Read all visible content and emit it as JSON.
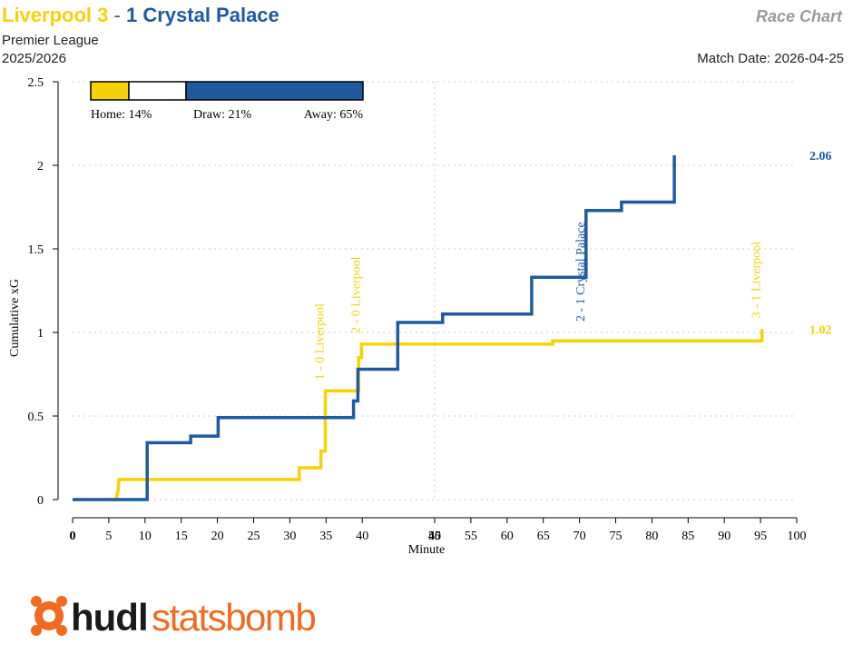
{
  "header": {
    "home_team": "Liverpool",
    "home_score": "3",
    "separator": "-",
    "away_score": "1",
    "away_team": "Crystal Palace",
    "competition": "Premier League",
    "season": "2025/2026",
    "chart_label": "Race Chart",
    "match_date": "Match Date: 2026-04-25"
  },
  "probability_bar": {
    "home_label": "Home: 14%",
    "draw_label": "Draw: 21%",
    "away_label": "Away: 65%",
    "home": 0.14,
    "draw": 0.21,
    "away": 0.65
  },
  "logo": {
    "text_dark": "hudl",
    "text_orange": "statsbomb",
    "icon": "statsbomb-logo-icon"
  },
  "colors": {
    "home": "#f6d20a",
    "away": "#1f5aa0",
    "logo_orange": "#f26a21",
    "logo_dark": "#1a1a1a"
  },
  "chart_data": {
    "type": "line",
    "step": true,
    "xlabel": "Minute",
    "ylabel": "Cumulative xG",
    "xlim": [
      0,
      100
    ],
    "ylim": [
      0,
      2.5
    ],
    "xticks": [
      "0",
      "5",
      "10",
      "15",
      "20",
      "25",
      "30",
      "35",
      "40",
      "45",
      "45",
      "50",
      "55",
      "60",
      "65",
      "70",
      "75",
      "80",
      "85",
      "90",
      "95",
      "100"
    ],
    "xtick_values": [
      0,
      5,
      10,
      15,
      20,
      25,
      30,
      35,
      40,
      45,
      45,
      50,
      55,
      60,
      65,
      70,
      75,
      80,
      85,
      90,
      95,
      100
    ],
    "halftime_tick": "45",
    "halftime_minute": 50,
    "yticks": [
      "0",
      "0.5",
      "1",
      "1.5",
      "2",
      "2.5"
    ],
    "ytick_values": [
      0,
      0.5,
      1,
      1.5,
      2,
      2.5
    ],
    "grid": true,
    "series": [
      {
        "name": "Liverpool",
        "final_label": "1.02",
        "points": [
          [
            0,
            0
          ],
          [
            6,
            0
          ],
          [
            6.3,
            0.06
          ],
          [
            6.4,
            0.12
          ],
          [
            31.3,
            0.12
          ],
          [
            31.3,
            0.19
          ],
          [
            34.3,
            0.19
          ],
          [
            34.3,
            0.29
          ],
          [
            34.9,
            0.29
          ],
          [
            34.9,
            0.65
          ],
          [
            39.5,
            0.65
          ],
          [
            39.5,
            0.85
          ],
          [
            39.9,
            0.85
          ],
          [
            39.9,
            0.93
          ],
          [
            66.3,
            0.93
          ],
          [
            66.3,
            0.95
          ],
          [
            95.2,
            0.95
          ],
          [
            95.2,
            1.02
          ]
        ]
      },
      {
        "name": "Crystal Palace",
        "final_label": "2.06",
        "points": [
          [
            0,
            0
          ],
          [
            10.3,
            0
          ],
          [
            10.3,
            0.34
          ],
          [
            16.3,
            0.34
          ],
          [
            16.3,
            0.38
          ],
          [
            20.1,
            0.38
          ],
          [
            20.1,
            0.49
          ],
          [
            38.8,
            0.49
          ],
          [
            38.8,
            0.59
          ],
          [
            39.4,
            0.59
          ],
          [
            39.4,
            0.78
          ],
          [
            44.9,
            0.78
          ],
          [
            44.9,
            1.06
          ],
          [
            51.1,
            1.06
          ],
          [
            51.1,
            1.11
          ],
          [
            63.4,
            1.11
          ],
          [
            63.4,
            1.33
          ],
          [
            70.9,
            1.33
          ],
          [
            70.9,
            1.73
          ],
          [
            75.8,
            1.73
          ],
          [
            75.8,
            1.78
          ],
          [
            83.1,
            1.78
          ],
          [
            83.1,
            2.06
          ]
        ]
      }
    ],
    "annotations": [
      {
        "text": "1 - 0 Liverpool",
        "x": 34.9,
        "y": 0.65,
        "series": "Liverpool"
      },
      {
        "text": "2 - 0 Liverpool",
        "x": 39.9,
        "y": 0.93,
        "series": "Liverpool"
      },
      {
        "text": "2 - 1 Crystal Palace",
        "x": 70.9,
        "y": 1.0,
        "series": "Crystal Palace"
      },
      {
        "text": "3 - 1 Liverpool",
        "x": 95.2,
        "y": 1.02,
        "series": "Liverpool"
      }
    ]
  }
}
